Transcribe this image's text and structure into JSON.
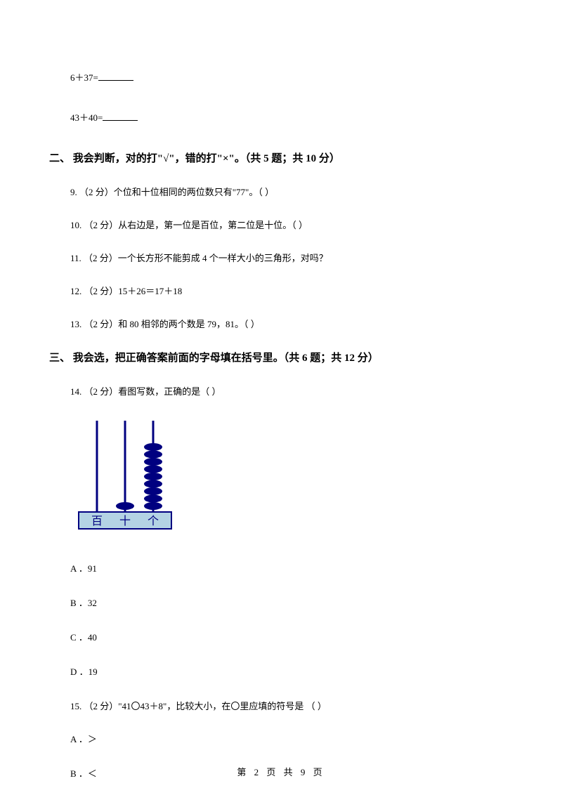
{
  "equations": {
    "eq1": "6＋37=",
    "eq2": "43＋40="
  },
  "section2": {
    "heading": "二、 我会判断，对的打\"√\"，错的打\"×\"。（共 5 题；共 10 分）",
    "q9": "9.  （2 分）个位和十位相同的两位数只有\"77\"。（      ）",
    "q10": "10.  （2 分）从右边是，第一位是百位，第二位是十位。（      ）",
    "q11": "11.  （2 分）一个长方形不能剪成 4 个一样大小的三角形，对吗？",
    "q12": "12.  （2 分）15＋26＝17＋18",
    "q13": "13.  （2 分）和 80 相邻的两个数是 79，81。（      ）"
  },
  "section3": {
    "heading": "三、 我会选，把正确答案前面的字母填在括号里。（共 6 题；共 12 分）",
    "q14": "14.  （2 分）看图写数，正确的是（      ）",
    "q14_options": {
      "a": "A ．91",
      "b": "B ．32",
      "c": "C ．40",
      "d": "D ．19"
    },
    "q15": "15.  （2 分）\"41〇43＋8\"，比较大小，在〇里应填的符号是 （      ）",
    "q15_options": {
      "a": "A ．＞",
      "b": "B ．＜"
    }
  },
  "abacus": {
    "labels": [
      "百",
      "十",
      "个"
    ],
    "beads": [
      0,
      1,
      9
    ],
    "rod_color": "#000080",
    "bead_color": "#000080",
    "base_fill": "#b4d3e4",
    "base_border": "#000080",
    "label_color": "#000080"
  },
  "footer": "第 2 页 共 9 页"
}
